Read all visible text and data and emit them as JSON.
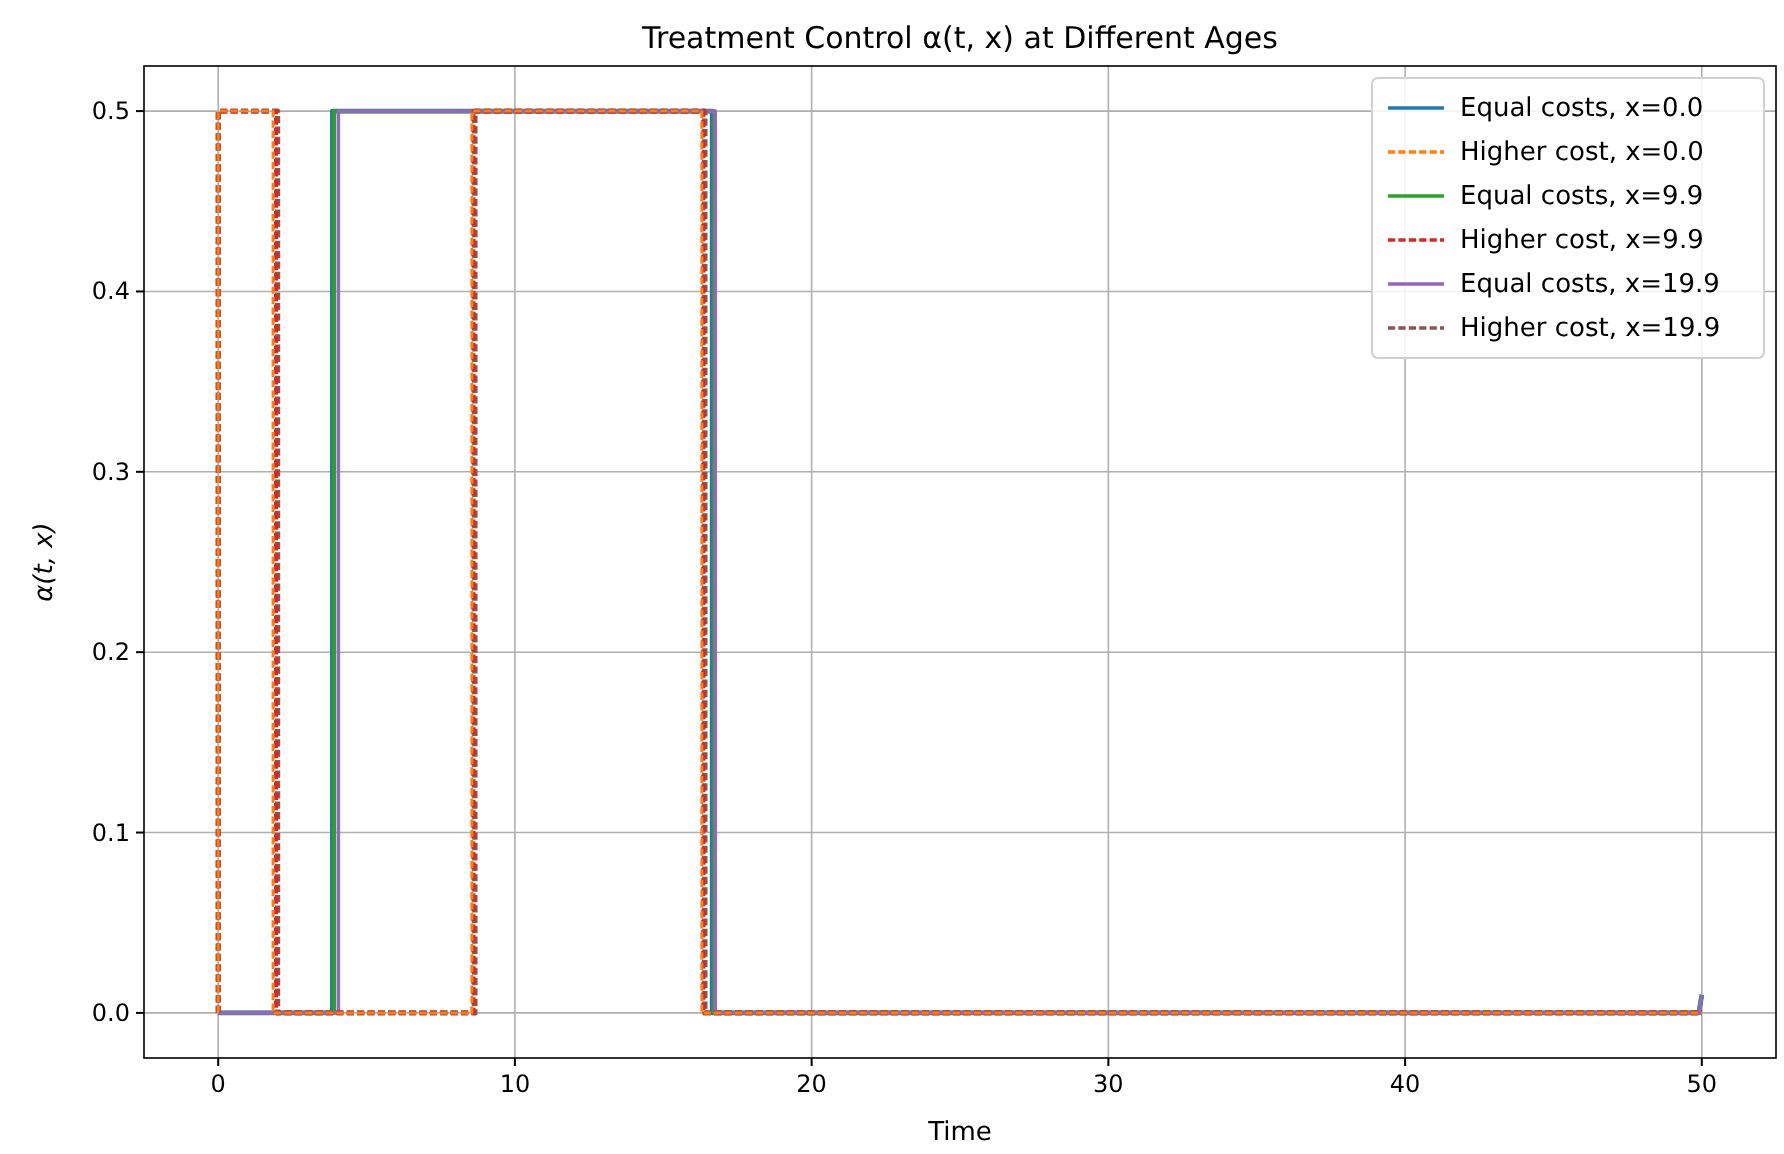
{
  "chart_data": {
    "type": "line",
    "title": "Treatment Control α(t, x) at Different Ages",
    "xlabel": "Time",
    "ylabel": "α(t, x)",
    "xlim": [
      -2.5,
      52.5
    ],
    "xticks": [
      0,
      10,
      20,
      30,
      40,
      50
    ],
    "ylim": [
      -0.025,
      0.525
    ],
    "yticks": [
      {
        "value": 0,
        "label": "0.0"
      },
      {
        "value": 0.1,
        "label": "0.1"
      },
      {
        "value": 0.2,
        "label": "0.2"
      },
      {
        "value": 0.3,
        "label": "0.3"
      },
      {
        "value": 0.4,
        "label": "0.4"
      },
      {
        "value": 0.5,
        "label": "0.5"
      }
    ],
    "grid": true,
    "legend": "top right",
    "marker": "none",
    "series": [
      {
        "name": "Equal costs, x=0.0",
        "color": "#1f77b4",
        "line_style": "solid",
        "x": [
          0,
          3.85,
          3.85,
          16.65,
          16.65,
          49.9,
          50
        ],
        "values": [
          0,
          0,
          0.5,
          0.5,
          0,
          0,
          0.01
        ]
      },
      {
        "name": "Higher cost, x=0.0",
        "color": "#ff7f0e",
        "line_style": "dashed",
        "x": [
          0,
          0,
          1.85,
          1.85,
          8.55,
          8.55,
          16.3,
          16.3,
          50
        ],
        "values": [
          0,
          0.5,
          0.5,
          0,
          0,
          0.5,
          0.5,
          0,
          0
        ]
      },
      {
        "name": "Equal costs, x=9.9",
        "color": "#2ca02c",
        "line_style": "solid",
        "x": [
          0,
          3.9,
          3.9,
          16.7,
          16.7,
          49.9,
          50
        ],
        "values": [
          0,
          0,
          0.5,
          0.5,
          0,
          0,
          0.01
        ]
      },
      {
        "name": "Higher cost, x=9.9",
        "color": "#d62728",
        "line_style": "dashed",
        "x": [
          0,
          0,
          1.95,
          1.95,
          8.6,
          8.6,
          16.35,
          16.35,
          50
        ],
        "values": [
          0,
          0.5,
          0.5,
          0,
          0,
          0.5,
          0.5,
          0,
          0
        ]
      },
      {
        "name": "Equal costs, x=19.9",
        "color": "#9467bd",
        "line_style": "solid",
        "x": [
          0,
          4.05,
          4.05,
          16.75,
          16.75,
          49.9,
          50
        ],
        "values": [
          0,
          0,
          0.5,
          0.5,
          0,
          0,
          0.01
        ]
      },
      {
        "name": "Higher cost, x=19.9",
        "color": "#8c564b",
        "line_style": "dashed",
        "x": [
          0,
          0,
          2,
          2,
          8.65,
          8.65,
          16.4,
          16.4,
          50
        ],
        "values": [
          0,
          0.5,
          0.5,
          0,
          0,
          0.5,
          0.5,
          0,
          0
        ]
      }
    ]
  }
}
